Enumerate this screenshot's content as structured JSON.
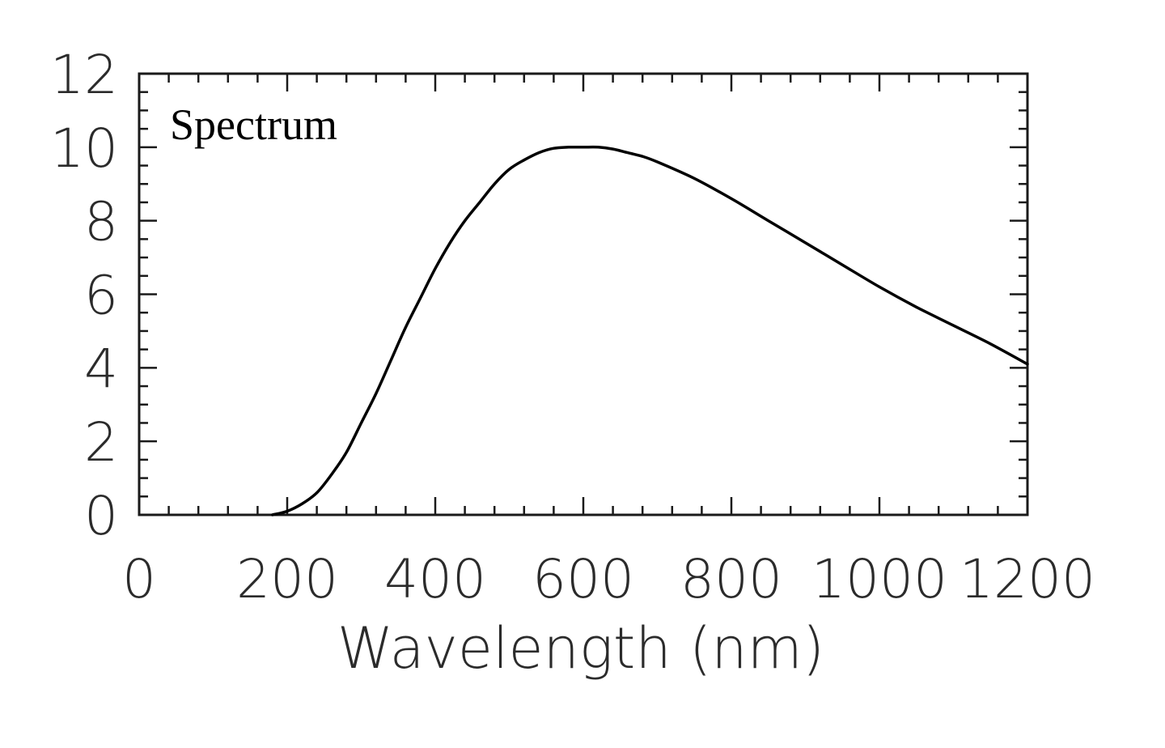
{
  "chart_data": {
    "type": "line",
    "title": "Spectrum",
    "xlabel": "Wavelength (nm)",
    "ylabel": "",
    "xlim": [
      0,
      1200
    ],
    "ylim": [
      0,
      12
    ],
    "xticks": [
      0,
      200,
      400,
      600,
      800,
      1000,
      1200
    ],
    "xtick_labels": [
      "0",
      "200",
      "400",
      "600",
      "800",
      "1000",
      "1200"
    ],
    "yticks": [
      0,
      2,
      4,
      6,
      8,
      10,
      12
    ],
    "ytick_labels": [
      "0",
      "2",
      "4",
      "6",
      "8",
      "10",
      "12"
    ],
    "grid": false,
    "legend": "none",
    "line_color": "#000000",
    "series": [
      {
        "x": [
          180,
          200,
          220,
          240,
          260,
          280,
          300,
          320,
          340,
          360,
          380,
          400,
          420,
          440,
          460,
          480,
          500,
          520,
          540,
          560,
          580,
          600,
          620,
          640,
          660,
          680,
          700,
          750,
          800,
          850,
          900,
          950,
          1000,
          1050,
          1100,
          1150,
          1200
        ],
        "values": [
          0.0,
          0.1,
          0.3,
          0.6,
          1.1,
          1.7,
          2.5,
          3.3,
          4.2,
          5.1,
          5.9,
          6.7,
          7.4,
          8.0,
          8.5,
          9.0,
          9.4,
          9.65,
          9.85,
          9.97,
          10.0,
          10.0,
          10.0,
          9.95,
          9.85,
          9.75,
          9.6,
          9.15,
          8.6,
          8.0,
          7.4,
          6.8,
          6.2,
          5.65,
          5.15,
          4.65,
          4.1
        ]
      }
    ]
  }
}
